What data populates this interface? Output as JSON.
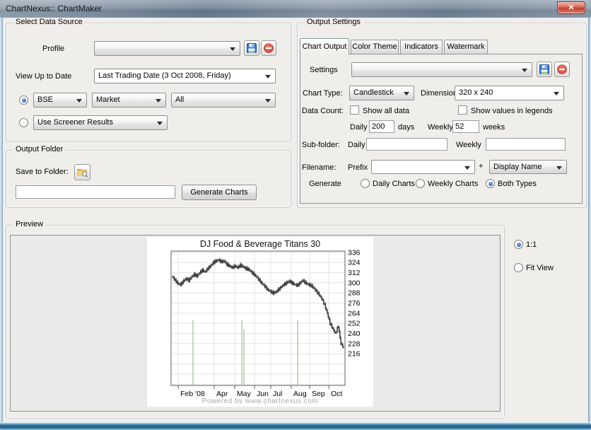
{
  "window": {
    "title": "ChartNexus:: ChartMaker",
    "close_glyph": "✕"
  },
  "select_data_source": {
    "legend": "Select Data Source",
    "profile_label": "Profile",
    "profile_value": "",
    "view_label": "View Up to Date",
    "view_value": "Last Trading Date (3 Oct 2008, Friday)",
    "exchange_value": "BSE",
    "category_value": "Market",
    "filter_value": "All",
    "screener_value": "Use Screener Results",
    "selected_mode": "exchange"
  },
  "output_folder": {
    "legend": "Output Folder",
    "save_label": "Save to Folder:",
    "path_value": "",
    "generate_button": "Generate Charts"
  },
  "output_settings": {
    "legend": "Output Settings",
    "tabs": [
      "Chart Output",
      "Color Theme",
      "Indicators",
      "Watermark"
    ],
    "active_tab": "Chart Output",
    "settings_label": "Settings",
    "settings_value": "",
    "chart_type_label": "Chart Type:",
    "chart_type_value": "Candlestick",
    "dimension_label": "Dimension",
    "dimension_value": "320 x 240",
    "data_count_label": "Data Count:",
    "show_all_data_label": "Show all data",
    "show_all_data_checked": false,
    "show_values_label": "Show values in legends",
    "show_values_checked": false,
    "daily_label": "Daily",
    "daily_value": "200",
    "days_label": "days",
    "weekly_label": "Weekly",
    "weekly_value": "52",
    "weeks_label": "weeks",
    "subfolder_label": "Sub-folder:",
    "subfolder_daily_label": "Daily",
    "subfolder_daily_value": "",
    "subfolder_weekly_label": "Weekly",
    "subfolder_weekly_value": "",
    "filename_label": "Filename:",
    "prefix_label": "Prefix",
    "prefix_value": "",
    "plus_label": "+",
    "suffix_value": "Display Name",
    "generate_label": "Generate",
    "generate_options": [
      "Daily Charts",
      "Weekly Charts",
      "Both Types"
    ],
    "generate_selected": "Both Types"
  },
  "preview": {
    "legend": "Preview",
    "zoom_one_to_one_label": "1:1",
    "zoom_fit_label": "Fit View",
    "zoom_selected": "1:1"
  },
  "chart_data": {
    "type": "candlestick",
    "title": "DJ Food & Beverage Titans 30",
    "watermark": "Powered by www.chartnexus.com",
    "ylim": [
      178.5,
      337.5
    ],
    "yticks": [
      216,
      228,
      240,
      252,
      264,
      276,
      288,
      300,
      312,
      324,
      336
    ],
    "ygrid_extra": [
      180,
      192,
      204
    ],
    "x_ticks": [
      {
        "pos": 0.041,
        "label": "Feb '08"
      },
      {
        "pos": 0.248,
        "label": "Apr"
      },
      {
        "pos": 0.366,
        "label": "May"
      },
      {
        "pos": 0.48,
        "label": "Jun"
      },
      {
        "pos": 0.573,
        "label": "Jul"
      },
      {
        "pos": 0.691,
        "label": "Aug"
      },
      {
        "pos": 0.797,
        "label": "Sep"
      },
      {
        "pos": 0.907,
        "label": "Oct"
      }
    ],
    "closes": [
      307,
      303,
      299,
      298,
      302,
      305,
      303,
      307,
      310,
      308,
      312,
      315,
      313,
      317,
      320,
      324,
      326,
      327,
      325,
      326,
      322,
      320,
      318,
      320,
      318,
      321,
      319,
      317,
      316,
      313,
      310,
      307,
      303,
      299,
      296,
      292,
      290,
      288,
      289,
      292,
      295,
      298,
      300,
      302,
      300,
      298,
      297,
      300,
      303,
      300,
      298,
      297,
      294,
      290,
      286,
      281,
      274,
      264,
      252,
      246,
      240,
      249,
      228,
      224
    ],
    "markers": [
      {
        "pos": 0.126,
        "top": 256
      },
      {
        "pos": 0.407,
        "top": 256
      },
      {
        "pos": 0.419,
        "top": 245
      },
      {
        "pos": 0.728,
        "top": 256
      }
    ],
    "marker_color": "#9fbe92",
    "candle_color": "#3a3a3a",
    "grid": true,
    "legend_position": "none"
  }
}
